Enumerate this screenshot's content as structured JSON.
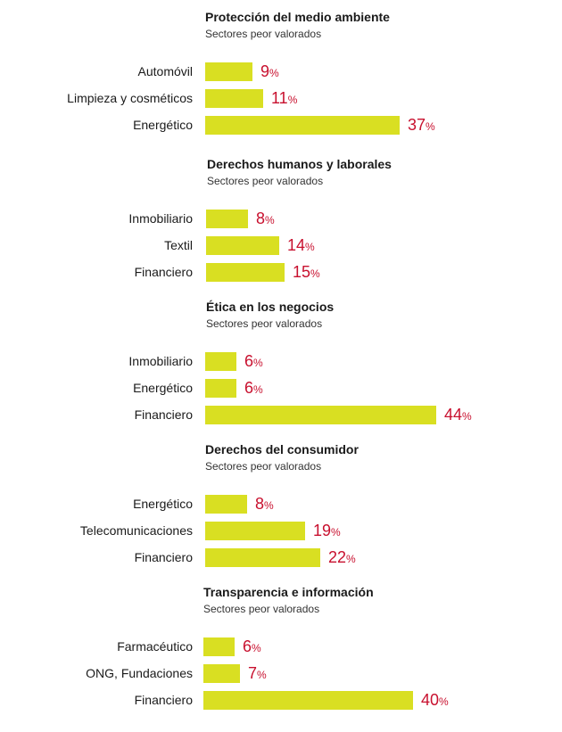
{
  "chart_data": [
    {
      "type": "bar",
      "title": "Protección del medio ambiente",
      "subtitle": "Sectores peor valorados",
      "categories": [
        "Automóvil",
        "Limpieza y cosméticos",
        "Energético"
      ],
      "values": [
        9,
        11,
        37
      ],
      "unit": "%"
    },
    {
      "type": "bar",
      "title": "Derechos humanos y laborales",
      "subtitle": "Sectores peor valorados",
      "categories": [
        "Inmobiliario",
        "Textil",
        "Financiero"
      ],
      "values": [
        8,
        14,
        15
      ],
      "unit": "%"
    },
    {
      "type": "bar",
      "title": "Ética en los negocios",
      "subtitle": "Sectores peor valorados",
      "categories": [
        "Inmobiliario",
        "Energético",
        "Financiero"
      ],
      "values": [
        6,
        6,
        44
      ],
      "unit": "%"
    },
    {
      "type": "bar",
      "title": "Derechos del consumidor",
      "subtitle": "Sectores peor valorados",
      "categories": [
        "Energético",
        "Telecomunicaciones",
        "Financiero"
      ],
      "values": [
        8,
        19,
        22
      ],
      "unit": "%"
    },
    {
      "type": "bar",
      "title": "Transparencia e información",
      "subtitle": "Sectores peor valorados",
      "categories": [
        "Farmacéutico",
        "ONG, Fundaciones",
        "Financiero"
      ],
      "values": [
        6,
        7,
        40
      ],
      "unit": "%"
    }
  ],
  "colors": {
    "bar": "#d9df22",
    "value_text": "#c8102e"
  }
}
